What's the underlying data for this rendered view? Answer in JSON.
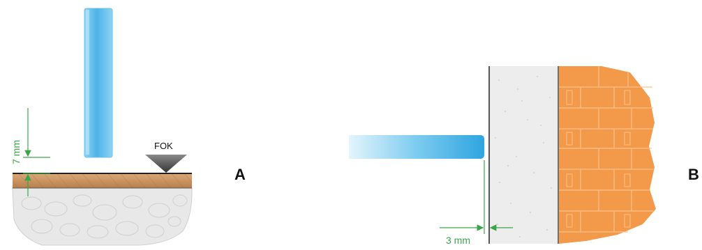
{
  "panels": {
    "a": {
      "letter": "A",
      "dimension_label": "7 mm",
      "marker_label": "FOK"
    },
    "b": {
      "letter": "B",
      "dimension_label": "3 mm"
    }
  },
  "colors": {
    "glass": "#5bbce8",
    "glass_light": "#d6effa",
    "wood": "#c9935e",
    "soil": "#e6e6e6",
    "plaster": "#ececec",
    "brick": "#f28a3a",
    "brick_line": "#ffb780",
    "dimension": "#3aa64a",
    "marker": "#555555"
  }
}
